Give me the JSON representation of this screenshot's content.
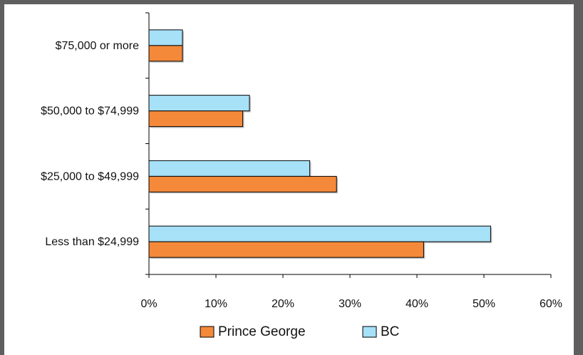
{
  "chart_data": {
    "type": "bar",
    "orientation": "horizontal",
    "categories": [
      "$75,000 or more",
      "$50,000 to $74,999",
      "$25,000 to $49,999",
      "Less than $24,999"
    ],
    "series": [
      {
        "name": "BC",
        "color": "#a6e1f8",
        "values": [
          5,
          15,
          24,
          51
        ]
      },
      {
        "name": "Prince George",
        "color": "#f4893a",
        "values": [
          5,
          14,
          28,
          41
        ]
      }
    ],
    "x_ticks": [
      "0%",
      "10%",
      "20%",
      "30%",
      "40%",
      "50%",
      "60%"
    ],
    "xlim": [
      0,
      60
    ],
    "grid": false,
    "legend": {
      "position": "bottom",
      "entries": [
        {
          "name": "Prince George",
          "color": "#f4893a"
        },
        {
          "name": "BC",
          "color": "#a6e1f8"
        }
      ]
    }
  }
}
